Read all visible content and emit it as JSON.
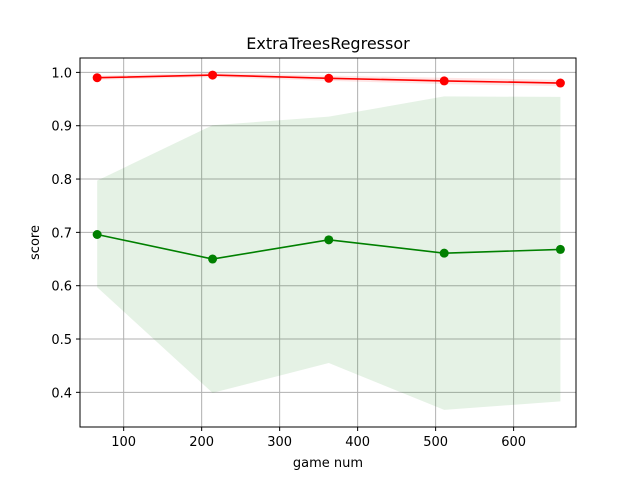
{
  "chart_data": {
    "type": "line",
    "title": "ExtraTreesRegressor",
    "xlabel": "game num",
    "ylabel": "score",
    "xlim": [
      44,
      680
    ],
    "ylim": [
      0.335,
      1.027
    ],
    "xticks": [
      100,
      200,
      300,
      400,
      500,
      600
    ],
    "yticks": [
      0.4,
      0.5,
      0.6,
      0.7,
      0.8,
      0.9,
      1.0
    ],
    "grid": true,
    "x": [
      66,
      214,
      363,
      511,
      660
    ],
    "series": [
      {
        "color": "#ff0000",
        "band_color": "#ff0000",
        "values": [
          0.99,
          0.995,
          0.989,
          0.984,
          0.98
        ],
        "lower": [
          0.986,
          0.991,
          0.984,
          0.978,
          0.974
        ],
        "upper": [
          0.994,
          0.999,
          0.994,
          0.99,
          0.986
        ]
      },
      {
        "color": "#008000",
        "band_color": "#008000",
        "values": [
          0.696,
          0.65,
          0.686,
          0.661,
          0.668
        ],
        "lower": [
          0.597,
          0.399,
          0.455,
          0.367,
          0.383
        ],
        "upper": [
          0.797,
          0.901,
          0.917,
          0.955,
          0.954
        ]
      }
    ]
  }
}
